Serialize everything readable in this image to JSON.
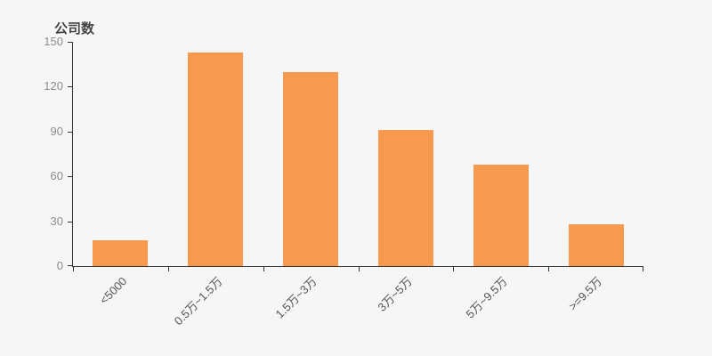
{
  "chart_data": {
    "type": "bar",
    "title": "公司数",
    "categories": [
      "<5000",
      "0.5万~1.5万",
      "1.5万~3万",
      "3万~5万",
      "5万~9.5万",
      ">=9.5万"
    ],
    "values": [
      17,
      143,
      130,
      91,
      68,
      28
    ],
    "xlabel": "",
    "ylabel": "公司数",
    "ylim": [
      0,
      150
    ],
    "y_ticks": [
      0,
      30,
      60,
      90,
      120,
      150
    ],
    "grid": false,
    "legend": false,
    "bar_color": "#f7994e",
    "axis_color": "#333333",
    "background_color": "#f6f6f6",
    "y_label_color": "#8c8c8c",
    "x_label_color": "#555555",
    "title_color": "#444444",
    "label_rotation_deg": 45
  }
}
